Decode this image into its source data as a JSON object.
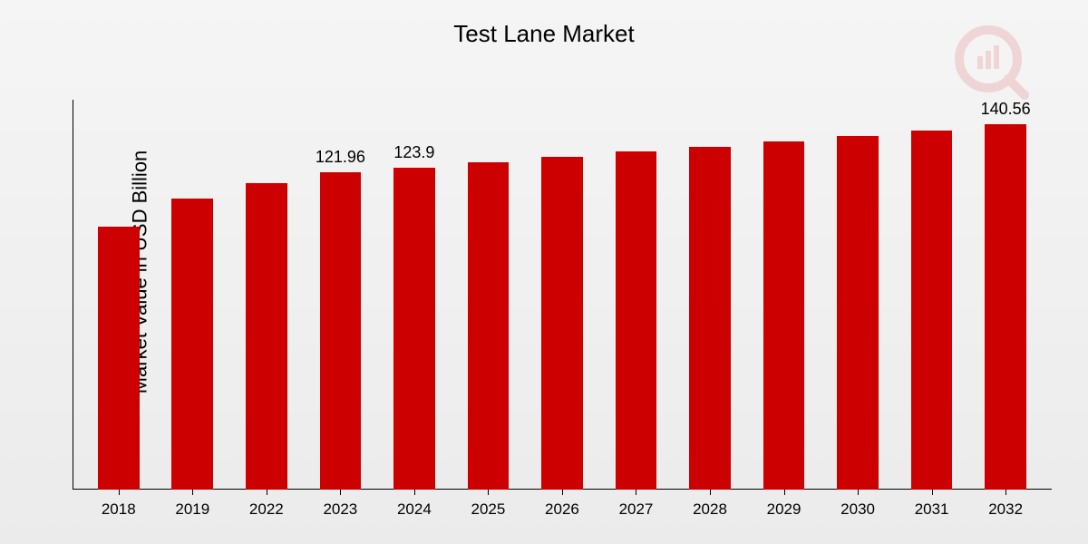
{
  "chart": {
    "type": "bar",
    "title": "Test Lane Market",
    "title_fontsize": 26,
    "ylabel": "Market Value in USD Billion",
    "ylabel_fontsize": 22,
    "categories": [
      "2018",
      "2019",
      "2022",
      "2023",
      "2024",
      "2025",
      "2026",
      "2027",
      "2028",
      "2029",
      "2030",
      "2031",
      "2032"
    ],
    "values": [
      101,
      112,
      118,
      121.96,
      123.9,
      126,
      128,
      130,
      132,
      134,
      136,
      138,
      140.56
    ],
    "value_labels": [
      "",
      "",
      "",
      "121.96",
      "123.9",
      "",
      "",
      "",
      "",
      "",
      "",
      "",
      "140.56"
    ],
    "bar_color": "#cc0000",
    "ylim": [
      0,
      150
    ],
    "background_gradient": [
      "#f5f5f5",
      "#ebebeb"
    ],
    "axis_color": "#000000",
    "bar_width_ratio": 0.56,
    "xlabel_fontsize": 17,
    "value_label_fontsize": 18,
    "watermark_color": "#cc0000",
    "watermark_opacity": 0.12
  }
}
